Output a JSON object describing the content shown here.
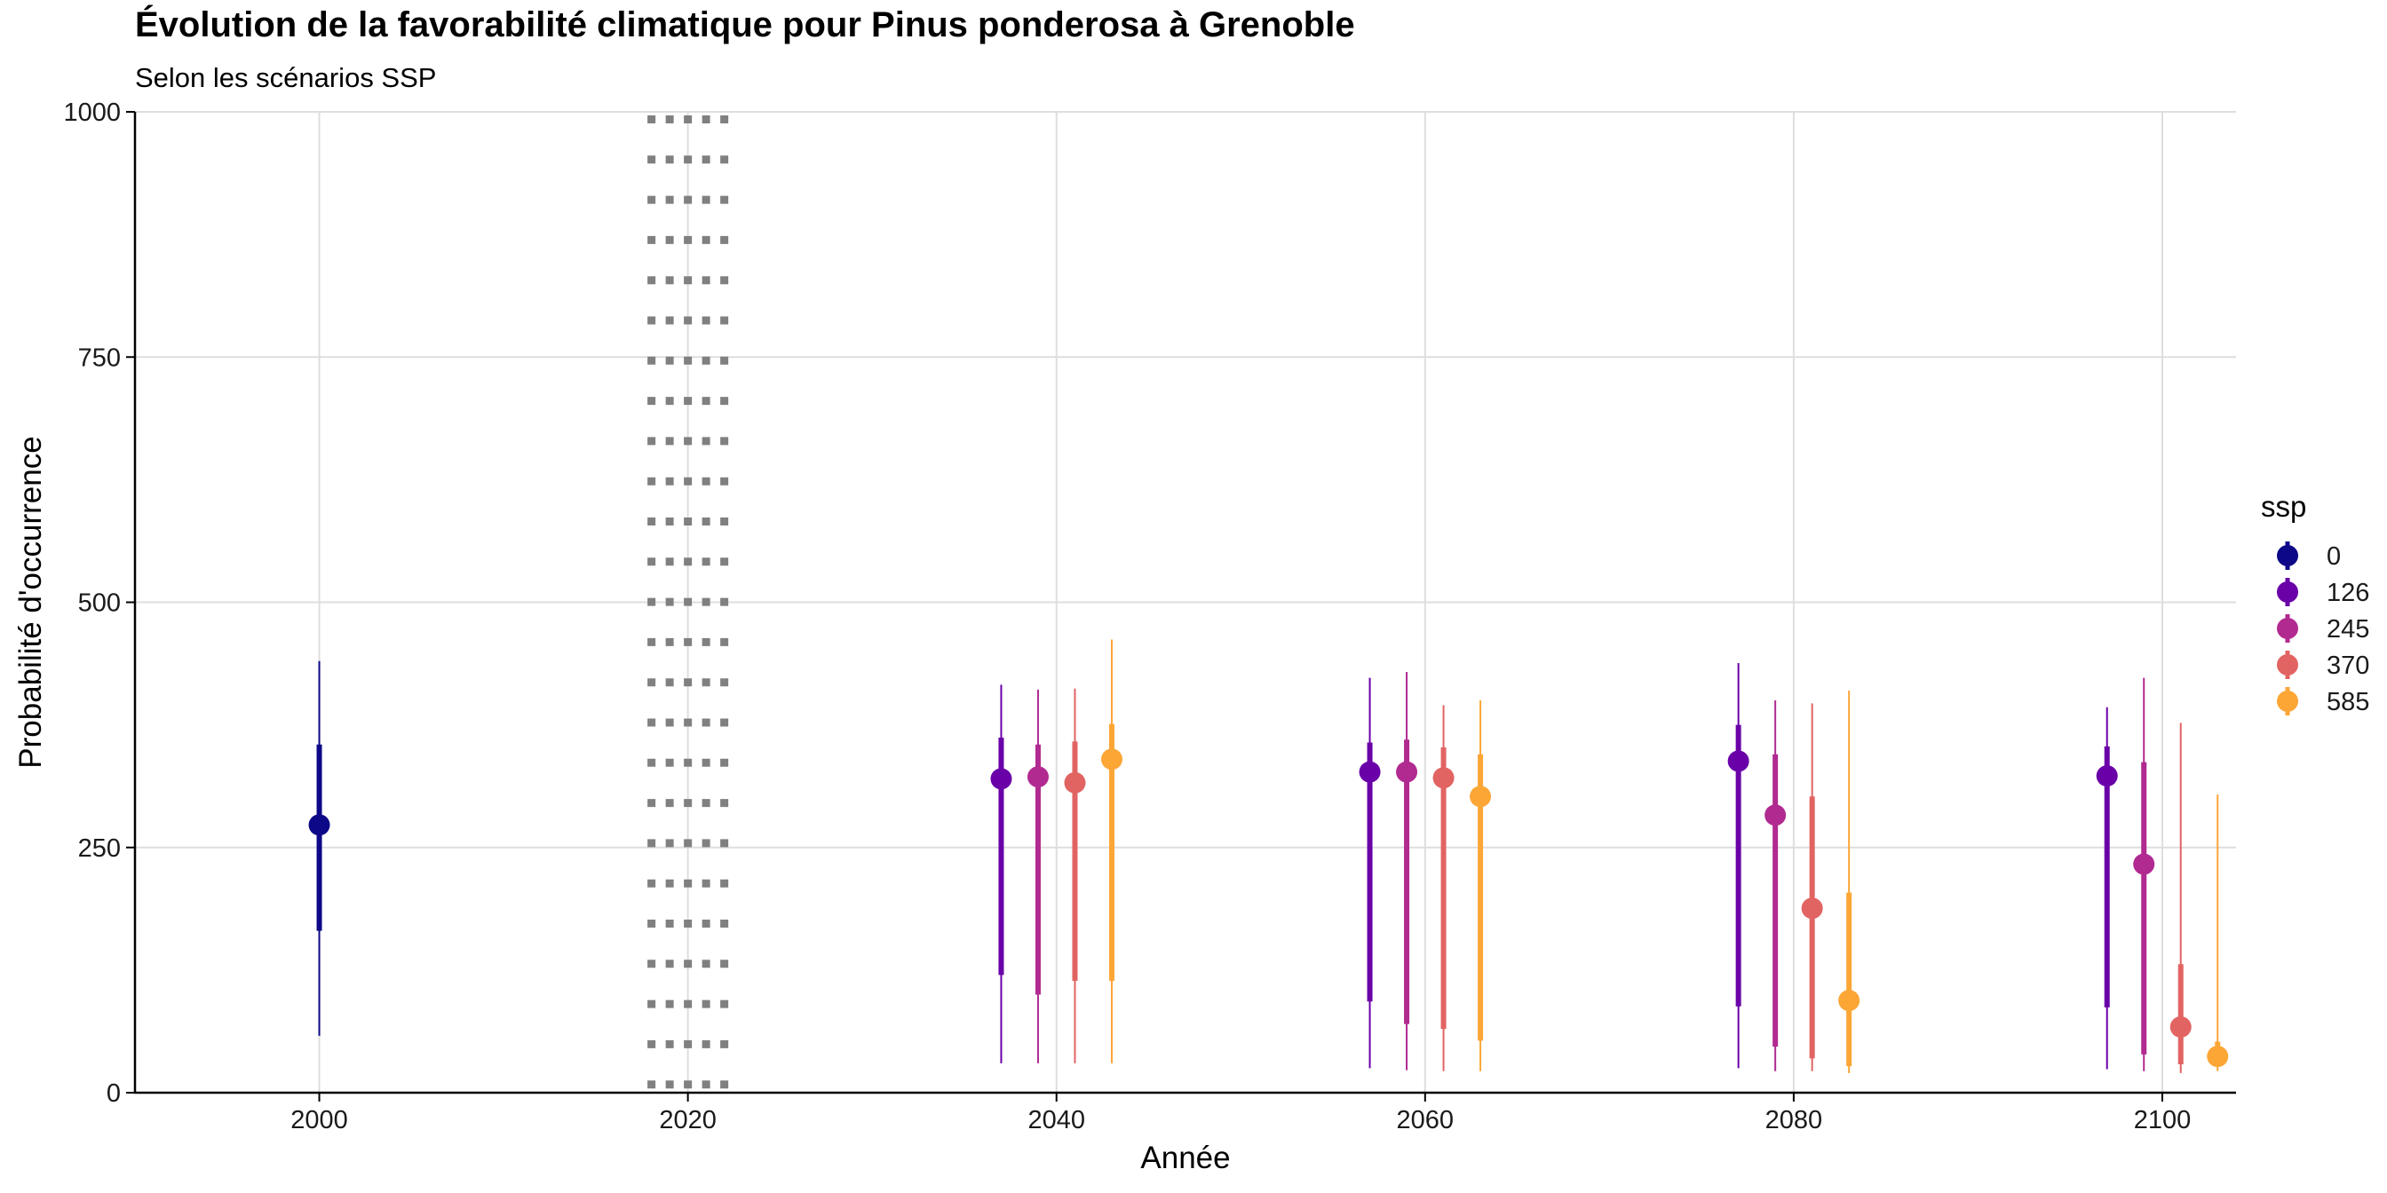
{
  "chart_data": {
    "type": "pointrange",
    "title": "Évolution de la favorabilité climatique pour Pinus ponderosa à Grenoble",
    "subtitle": "Selon les scénarios SSP",
    "xlabel": "Année",
    "ylabel": "Probabilité d'occurrence",
    "xlim": [
      1990,
      2104
    ],
    "ylim": [
      0,
      1000
    ],
    "x_ticks": [
      2000,
      2020,
      2040,
      2060,
      2080,
      2100
    ],
    "y_ticks": [
      0,
      250,
      500,
      750,
      1000
    ],
    "grid": true,
    "reference_line": {
      "x": 2020,
      "style": "dotted",
      "color": "#808080"
    },
    "legend": {
      "title": "ssp",
      "position": "right"
    },
    "series": [
      {
        "name": "0",
        "color": "#0D0887",
        "points": [
          {
            "x": 2000,
            "y": 273,
            "inner": [
              165,
              355
            ],
            "outer": [
              58,
              440
            ]
          }
        ]
      },
      {
        "name": "126",
        "color": "#6A00A8",
        "points": [
          {
            "x": 2037,
            "y": 320,
            "inner": [
              120,
              362
            ],
            "outer": [
              30,
              416
            ]
          },
          {
            "x": 2057,
            "y": 327,
            "inner": [
              93,
              357
            ],
            "outer": [
              25,
              423
            ]
          },
          {
            "x": 2077,
            "y": 338,
            "inner": [
              88,
              375
            ],
            "outer": [
              25,
              438
            ]
          },
          {
            "x": 2097,
            "y": 323,
            "inner": [
              87,
              353
            ],
            "outer": [
              24,
              393
            ]
          }
        ]
      },
      {
        "name": "245",
        "color": "#B12A90",
        "points": [
          {
            "x": 2039,
            "y": 322,
            "inner": [
              100,
              355
            ],
            "outer": [
              30,
              411
            ]
          },
          {
            "x": 2059,
            "y": 327,
            "inner": [
              70,
              360
            ],
            "outer": [
              23,
              429
            ]
          },
          {
            "x": 2079,
            "y": 283,
            "inner": [
              47,
              345
            ],
            "outer": [
              22,
              400
            ]
          },
          {
            "x": 2099,
            "y": 233,
            "inner": [
              39,
              337
            ],
            "outer": [
              22,
              423
            ]
          }
        ]
      },
      {
        "name": "370",
        "color": "#E16462",
        "points": [
          {
            "x": 2041,
            "y": 316,
            "inner": [
              114,
              358
            ],
            "outer": [
              30,
              412
            ]
          },
          {
            "x": 2061,
            "y": 321,
            "inner": [
              65,
              352
            ],
            "outer": [
              22,
              395
            ]
          },
          {
            "x": 2081,
            "y": 188,
            "inner": [
              35,
              302
            ],
            "outer": [
              22,
              397
            ]
          },
          {
            "x": 2101,
            "y": 67,
            "inner": [
              29,
              131
            ],
            "outer": [
              20,
              377
            ]
          }
        ]
      },
      {
        "name": "585",
        "color": "#FCA636",
        "points": [
          {
            "x": 2043,
            "y": 340,
            "inner": [
              114,
              376
            ],
            "outer": [
              30,
              462
            ]
          },
          {
            "x": 2063,
            "y": 302,
            "inner": [
              53,
              345
            ],
            "outer": [
              22,
              400
            ]
          },
          {
            "x": 2083,
            "y": 94,
            "inner": [
              27,
              204
            ],
            "outer": [
              20,
              410
            ]
          },
          {
            "x": 2103,
            "y": 37,
            "inner": [
              28,
              52
            ],
            "outer": [
              22,
              304
            ]
          }
        ]
      }
    ]
  }
}
